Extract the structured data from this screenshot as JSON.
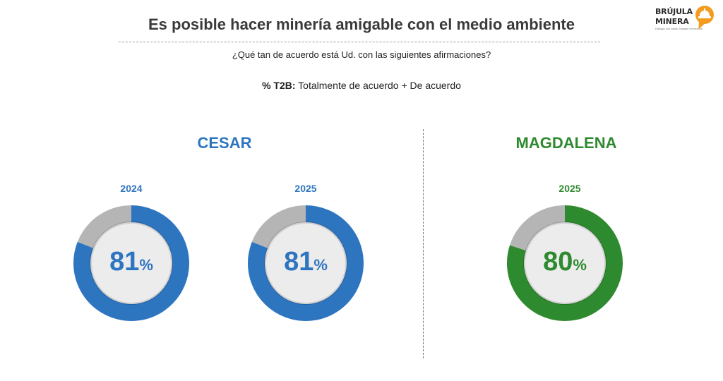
{
  "header": {
    "title": "Es posible hacer minería amigable con el medio ambiente",
    "question": "¿Qué tan de acuerdo está Ud. con las siguientes afirmaciones?",
    "t2b_label": "% T2B:",
    "t2b_text": "Totalmente de acuerdo + De acuerdo"
  },
  "logo": {
    "line1": "BRÚJULA",
    "line2": "MINERA",
    "tagline": "Diálogo con datos, basado en hechos",
    "color": "#f39c1f"
  },
  "colors": {
    "cesar": "#2e75c0",
    "magdalena": "#2e8a2e",
    "remainder": "#b5b5b5",
    "inner_fill": "#ececec"
  },
  "chart_data": [
    {
      "type": "pie",
      "region": "CESAR",
      "year": "2024",
      "value": 81,
      "label": "81",
      "unit": "%"
    },
    {
      "type": "pie",
      "region": "CESAR",
      "year": "2025",
      "value": 81,
      "label": "81",
      "unit": "%"
    },
    {
      "type": "pie",
      "region": "MAGDALENA",
      "year": "2025",
      "value": 80,
      "label": "80",
      "unit": "%"
    }
  ]
}
